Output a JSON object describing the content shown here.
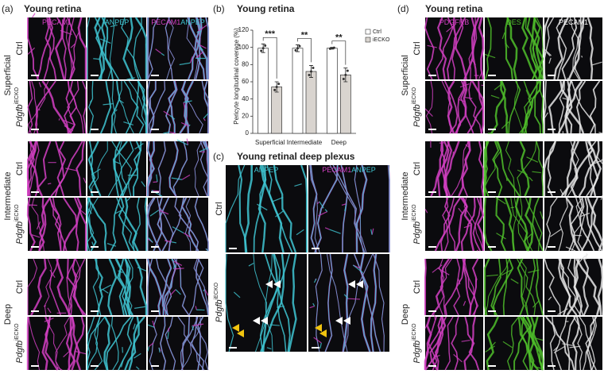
{
  "panel_a": {
    "label": "(a)",
    "title": "Young retina",
    "columns": [
      "PECAM1",
      "ANPEP"
    ],
    "layers": [
      "Superficial",
      "Intermediate",
      "Deep"
    ],
    "control": "Ctrl",
    "genotype": {
      "gene": "Pdgfb",
      "sup": "iECKO"
    }
  },
  "chart_data": {
    "type": "bar",
    "label": "(b)",
    "title": "Young retina",
    "ylabel": "Pericyte longitudinal coverage (%)",
    "categories": [
      "Superficial",
      "Intermediate",
      "Deep"
    ],
    "series": [
      {
        "name": "Ctrl",
        "color": "#ffffff",
        "values": [
          99,
          99,
          99
        ],
        "errors": [
          5,
          4,
          1
        ]
      },
      {
        "name": "iECKO",
        "color": "#d9d4cf",
        "values": [
          54,
          72,
          68
        ],
        "errors": [
          6,
          7,
          8
        ]
      }
    ],
    "annotations": [
      "***",
      "**",
      "**"
    ],
    "ylim": [
      0,
      120
    ],
    "yticks": [
      0,
      20,
      40,
      60,
      80,
      100,
      120
    ],
    "legend": "upper right"
  },
  "panel_c": {
    "label": "(c)",
    "title": "Young retinal deep plexus"
  },
  "panel_d": {
    "label": "(d)",
    "title": "Young retina",
    "columns": [
      "PDGFRB",
      "DES",
      "PECAM1"
    ]
  }
}
